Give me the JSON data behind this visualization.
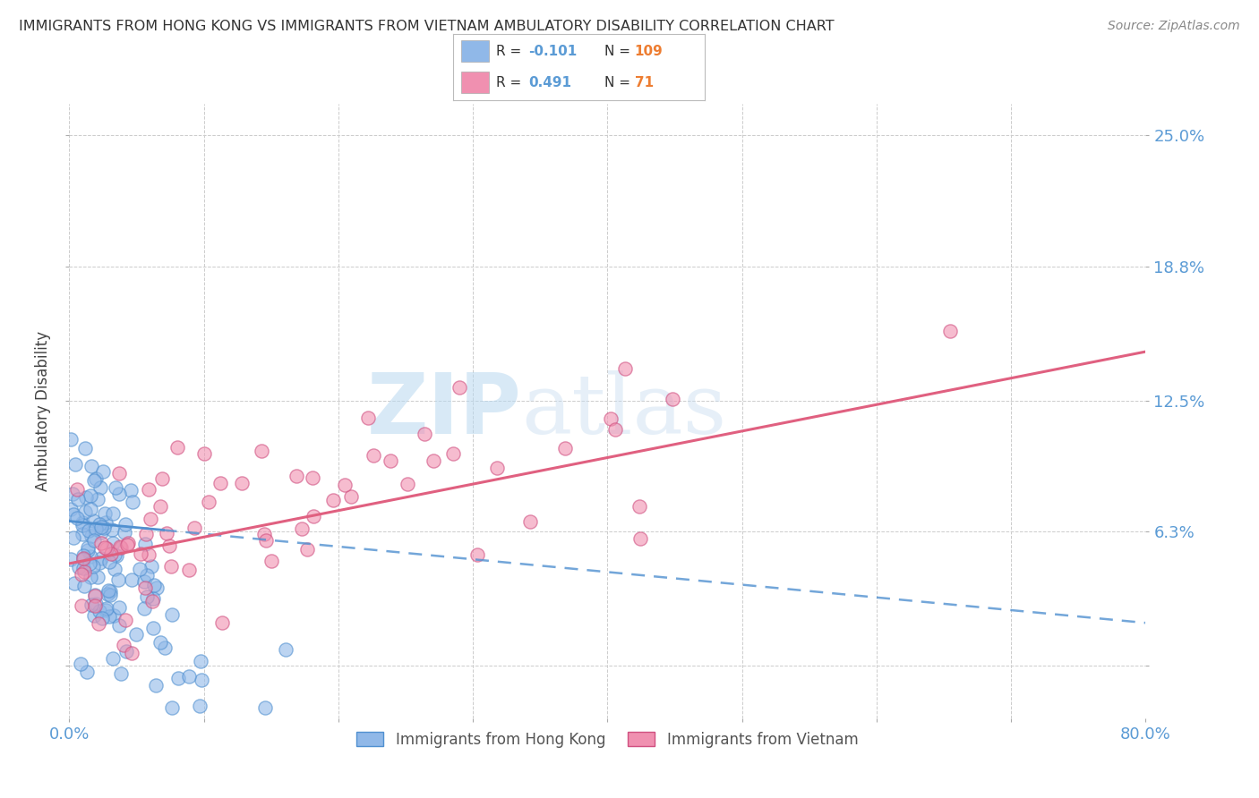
{
  "title": "IMMIGRANTS FROM HONG KONG VS IMMIGRANTS FROM VIETNAM AMBULATORY DISABILITY CORRELATION CHART",
  "source": "Source: ZipAtlas.com",
  "ylabel": "Ambulatory Disability",
  "xmin": 0.0,
  "xmax": 0.8,
  "ymin": -0.025,
  "ymax": 0.265,
  "yticks": [
    0.0,
    0.063,
    0.125,
    0.188,
    0.25
  ],
  "ytick_labels": [
    "",
    "6.3%",
    "12.5%",
    "18.8%",
    "25.0%"
  ],
  "xticks": [
    0.0,
    0.1,
    0.2,
    0.3,
    0.4,
    0.5,
    0.6,
    0.7,
    0.8
  ],
  "xtick_labels_show": [
    "0.0%",
    "",
    "",
    "",
    "",
    "",
    "",
    "",
    "80.0%"
  ],
  "hk_R": -0.101,
  "hk_N": 109,
  "vn_R": 0.491,
  "vn_N": 71,
  "hk_color": "#90b8e8",
  "vn_color": "#f090b0",
  "hk_edge_color": "#5090d0",
  "vn_edge_color": "#d05080",
  "hk_line_color": "#5090d0",
  "vn_line_color": "#e06080",
  "watermark": "ZIPatlas",
  "background_color": "#ffffff",
  "grid_color": "#cccccc",
  "title_color": "#333333",
  "axis_color": "#5b9bd5",
  "legend_R_color": "#5b9bd5",
  "legend_N_color": "#ed7d31",
  "hk_trend_x0": 0.0,
  "hk_trend_x1": 0.8,
  "hk_trend_y0": 0.068,
  "hk_trend_y1": 0.02,
  "vn_trend_x0": 0.0,
  "vn_trend_x1": 0.8,
  "vn_trend_y0": 0.048,
  "vn_trend_y1": 0.148
}
